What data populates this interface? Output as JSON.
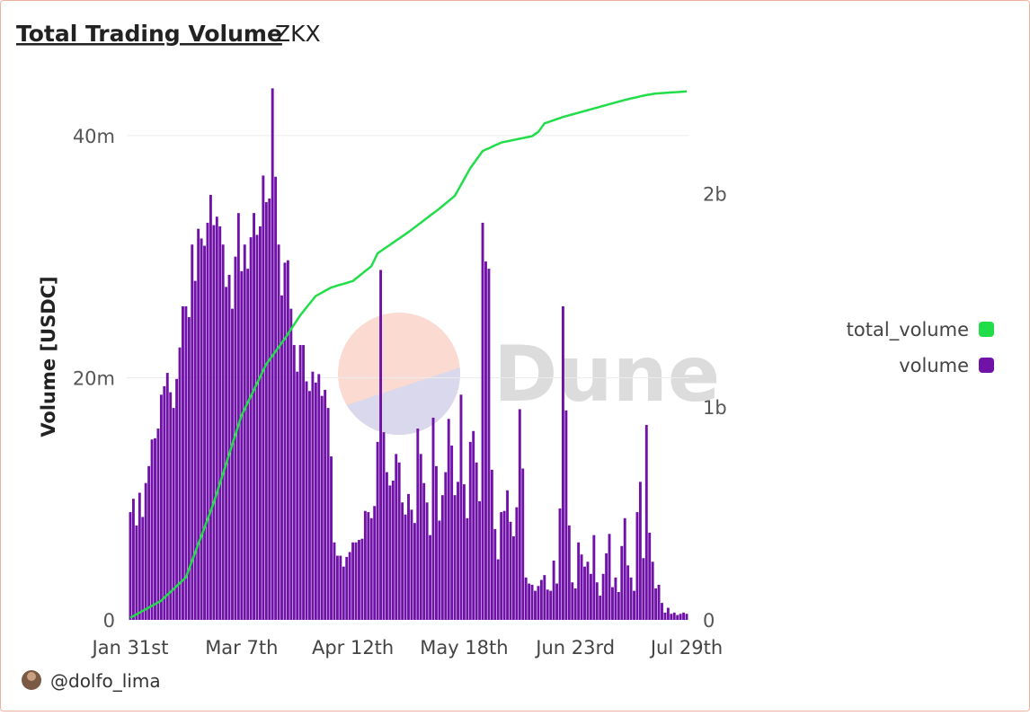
{
  "chart_data": {
    "type": "bar",
    "title": "Total Trading Volume",
    "subtitle": "ZKX",
    "y_label": "Volume [USDC]",
    "watermark": "Dune",
    "categories": [
      "Jan 31st",
      null,
      null,
      null,
      null,
      null,
      null,
      null,
      null,
      null,
      null,
      null,
      null,
      null,
      null,
      null,
      null,
      null,
      null,
      null,
      null,
      null,
      null,
      null,
      null,
      null,
      null,
      null,
      null,
      null,
      null,
      null,
      null,
      null,
      null,
      null,
      "Mar 7th",
      null,
      null,
      null,
      null,
      null,
      null,
      null,
      null,
      null,
      null,
      null,
      null,
      null,
      null,
      null,
      null,
      null,
      null,
      null,
      null,
      null,
      null,
      null,
      null,
      null,
      null,
      null,
      null,
      null,
      null,
      null,
      null,
      null,
      null,
      null,
      "Apr 12th",
      null,
      null,
      null,
      null,
      null,
      null,
      null,
      null,
      null,
      null,
      null,
      null,
      null,
      null,
      null,
      null,
      null,
      null,
      null,
      null,
      null,
      null,
      null,
      null,
      null,
      null,
      null,
      null,
      null,
      null,
      null,
      null,
      null,
      null,
      null,
      "May 18th",
      null,
      null,
      null,
      null,
      null,
      null,
      null,
      null,
      null,
      null,
      null,
      null,
      null,
      null,
      null,
      null,
      null,
      null,
      null,
      null,
      null,
      null,
      null,
      null,
      null,
      null,
      null,
      null,
      null,
      null,
      null,
      null,
      null,
      null,
      null,
      "Jun 23rd",
      null,
      null,
      null,
      null,
      null,
      null,
      null,
      null,
      null,
      null,
      null,
      null,
      null,
      null,
      null,
      null,
      null,
      null,
      null,
      null,
      null,
      null,
      null,
      null,
      null,
      null,
      null,
      null,
      null,
      null,
      null,
      null,
      null,
      null,
      null,
      "Jul 29th"
    ],
    "series": [
      {
        "name": "total_volume",
        "type": "line",
        "axis": "y2",
        "color": "#22dd4a",
        "values": [
          10000000,
          18000000,
          26000000,
          34000000,
          42000000,
          50000000,
          58000000,
          66000000,
          74000000,
          82000000,
          90000000,
          104000000,
          118000000,
          131000000,
          145000000,
          159000000,
          173000000,
          186000000,
          200000000,
          239000000,
          278000000,
          317000000,
          356000000,
          394000000,
          433000000,
          472000000,
          511000000,
          550000000,
          596000000,
          641000000,
          687000000,
          732000000,
          778000000,
          824000000,
          869000000,
          915000000,
          960000000,
          990000000,
          1020000000,
          1050000000,
          1080000000,
          1110000000,
          1140000000,
          1170000000,
          1200000000,
          1220000000,
          1240000000,
          1260000000,
          1280000000,
          1300000000,
          1320000000,
          1342000000,
          1364000000,
          1386000000,
          1408000000,
          1430000000,
          1448000000,
          1466000000,
          1484000000,
          1502000000,
          1520000000,
          1528000000,
          1536000000,
          1544000000,
          1552000000,
          1560000000,
          1564000000,
          1569000000,
          1573000000,
          1577000000,
          1581000000,
          1586000000,
          1590000000,
          1602000000,
          1613000000,
          1625000000,
          1637000000,
          1648000000,
          1660000000,
          1690000000,
          1720000000,
          1730000000,
          1740000000,
          1750000000,
          1760000000,
          1770000000,
          1780000000,
          1790000000,
          1800000000,
          1810000000,
          1820000000,
          1831000000,
          1842000000,
          1853000000,
          1864000000,
          1875000000,
          1886000000,
          1897000000,
          1908000000,
          1919000000,
          1930000000,
          1942000000,
          1954000000,
          1966000000,
          1978000000,
          1990000000,
          2016000000,
          2042000000,
          2068000000,
          2094000000,
          2120000000,
          2140000000,
          2160000000,
          2180000000,
          2200000000,
          2207000000,
          2213000000,
          2220000000,
          2227000000,
          2233000000,
          2240000000,
          2243000000,
          2246000000,
          2249000000,
          2252000000,
          2255000000,
          2258000000,
          2261000000,
          2264000000,
          2267000000,
          2270000000,
          2280000000,
          2290000000,
          2310000000,
          2330000000,
          2335000000,
          2340000000,
          2345000000,
          2350000000,
          2355000000,
          2360000000,
          2364000000,
          2368000000,
          2372000000,
          2376000000,
          2380000000,
          2384000000,
          2388000000,
          2392000000,
          2396000000,
          2400000000,
          2404000000,
          2408000000,
          2412000000,
          2416000000,
          2420000000,
          2424000000,
          2428000000,
          2432000000,
          2436000000,
          2440000000,
          2443000000,
          2447000000,
          2450000000,
          2453000000,
          2457000000,
          2460000000,
          2463000000,
          2465000000,
          2468000000,
          2470000000,
          2471000000,
          2472000000,
          2473000000,
          2474000000,
          2475000000,
          2476000000,
          2477000000,
          2478000000,
          2479000000,
          2480000000
        ]
      },
      {
        "name": "volume",
        "type": "bar",
        "color": "#7012a8",
        "values": [
          8900000,
          10000000,
          7800000,
          10500000,
          8500000,
          11300000,
          12700000,
          14900000,
          15000000,
          15800000,
          18600000,
          19300000,
          20400000,
          18800000,
          17500000,
          19900000,
          22500000,
          25900000,
          25900000,
          25000000,
          31000000,
          28000000,
          32300000,
          31500000,
          30900000,
          32800000,
          35100000,
          32600000,
          33300000,
          32500000,
          31000000,
          27500000,
          28500000,
          25700000,
          30000000,
          33600000,
          28800000,
          31000000,
          29000000,
          31600000,
          33600000,
          31800000,
          32500000,
          36700000,
          34500000,
          34800000,
          43900000,
          36600000,
          31000000,
          26800000,
          29500000,
          29700000,
          25700000,
          22700000,
          20500000,
          22700000,
          22700000,
          19700000,
          18900000,
          20500000,
          19600000,
          20300000,
          18500000,
          19000000,
          17500000,
          13500000,
          6400000,
          5300000,
          5300000,
          4400000,
          5200000,
          5600000,
          6400000,
          6400000,
          6600000,
          6700000,
          9000000,
          8900000,
          8400000,
          9400000,
          14700000,
          28900000,
          15500000,
          12200000,
          11100000,
          11500000,
          13700000,
          13000000,
          9700000,
          8700000,
          10400000,
          9100000,
          8000000,
          15800000,
          13700000,
          11300000,
          9700000,
          7000000,
          16700000,
          12700000,
          8200000,
          10300000,
          12200000,
          16600000,
          14400000,
          10300000,
          11400000,
          18600000,
          11200000,
          8400000,
          14700000,
          15600000,
          13000000,
          9800000,
          32800000,
          29600000,
          29000000,
          12400000,
          7500000,
          5000000,
          8900000,
          9000000,
          10700000,
          8100000,
          6900000,
          9300000,
          17400000,
          12500000,
          3500000,
          3000000,
          2900000,
          2400000,
          2800000,
          3300000,
          3700000,
          2500000,
          2400000,
          4900000,
          3000000,
          9200000,
          25900000,
          17300000,
          7800000,
          3100000,
          2600000,
          6400000,
          5400000,
          4400000,
          4800000,
          3800000,
          7000000,
          3100000,
          2000000,
          3800000,
          5500000,
          7100000,
          2700000,
          3500000,
          2300000,
          6100000,
          8400000,
          4500000,
          3500000,
          2400000,
          8900000,
          11400000,
          5100000,
          16100000,
          7200000,
          4800000,
          2600000,
          2900000,
          1400000,
          600000,
          1000000,
          500000,
          600000,
          400000,
          500000,
          600000,
          500000
        ]
      }
    ],
    "ylim": [
      0,
      44000000
    ],
    "yticks": [
      0,
      {
        "value": 20000000,
        "label": "20m"
      },
      {
        "value": 40000000,
        "label": "40m"
      }
    ],
    "y2lim": [
      0,
      2500000000
    ],
    "y2ticks": [
      0,
      {
        "value": 1000000000,
        "label": "1b"
      },
      {
        "value": 2000000000,
        "label": "2b"
      }
    ],
    "grid": true,
    "legend": "right"
  },
  "footer": {
    "author": "@dolfo_lima"
  }
}
